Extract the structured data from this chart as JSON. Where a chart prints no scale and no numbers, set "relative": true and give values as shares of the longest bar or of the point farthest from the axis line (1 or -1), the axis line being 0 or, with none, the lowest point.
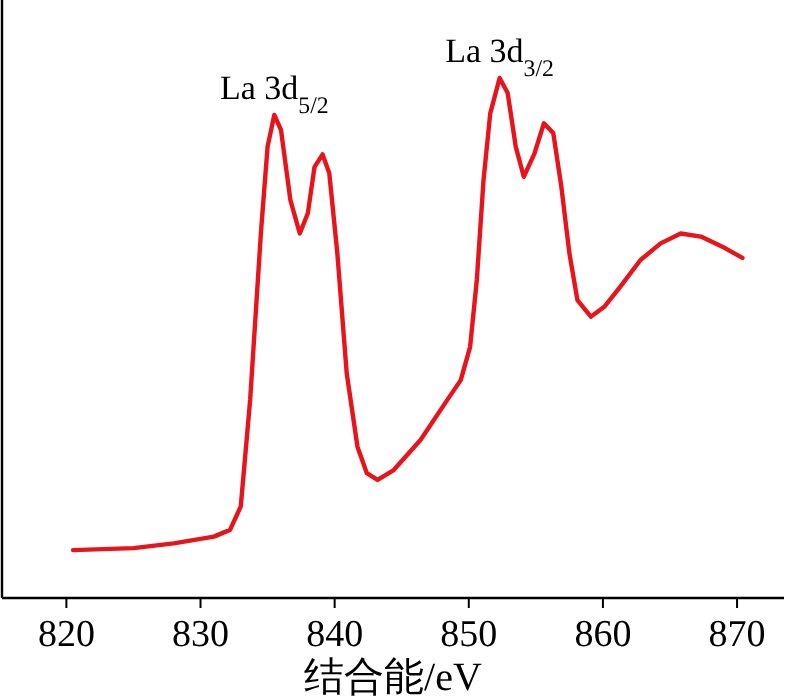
{
  "chart_data": {
    "type": "line",
    "relative": true,
    "xlabel": "结合能/eV",
    "xlim": [
      815.2,
      873.5
    ],
    "xticks": [
      820,
      830,
      840,
      850,
      860,
      870
    ],
    "grid": false,
    "line_style": "solid",
    "annotations": [
      {
        "text": "La 3d$_{5/2}$",
        "x": 835.5,
        "y": 0.929
      },
      {
        "text": "La 3d$_{3/2}$",
        "x": 852.3,
        "y": 1
      }
    ],
    "series": [
      {
        "color": "#e8141b",
        "x": [
          820.5,
          825.0,
          828.0,
          831.0,
          832.2,
          833.0,
          833.7,
          834.5,
          835.0,
          835.5,
          836.0,
          836.7,
          837.4,
          838.0,
          838.5,
          839.1,
          839.6,
          840.2,
          840.9,
          841.7,
          842.4,
          843.2,
          844.4,
          846.4,
          848.4,
          849.4,
          850.1,
          850.6,
          851.1,
          851.6,
          852.3,
          852.9,
          853.5,
          854.1,
          854.9,
          855.6,
          856.3,
          856.9,
          857.5,
          858.1,
          859.1,
          860.1,
          861.3,
          862.8,
          864.3,
          865.8,
          867.3,
          869.1,
          870.4
        ],
        "values": [
          0.092,
          0.096,
          0.105,
          0.118,
          0.131,
          0.176,
          0.381,
          0.701,
          0.868,
          0.929,
          0.9,
          0.765,
          0.701,
          0.74,
          0.829,
          0.853,
          0.817,
          0.663,
          0.432,
          0.291,
          0.24,
          0.227,
          0.246,
          0.304,
          0.381,
          0.419,
          0.483,
          0.612,
          0.804,
          0.932,
          1,
          0.971,
          0.868,
          0.81,
          0.855,
          0.913,
          0.894,
          0.791,
          0.663,
          0.573,
          0.541,
          0.56,
          0.599,
          0.65,
          0.682,
          0.701,
          0.695,
          0.673,
          0.654
        ]
      }
    ]
  }
}
